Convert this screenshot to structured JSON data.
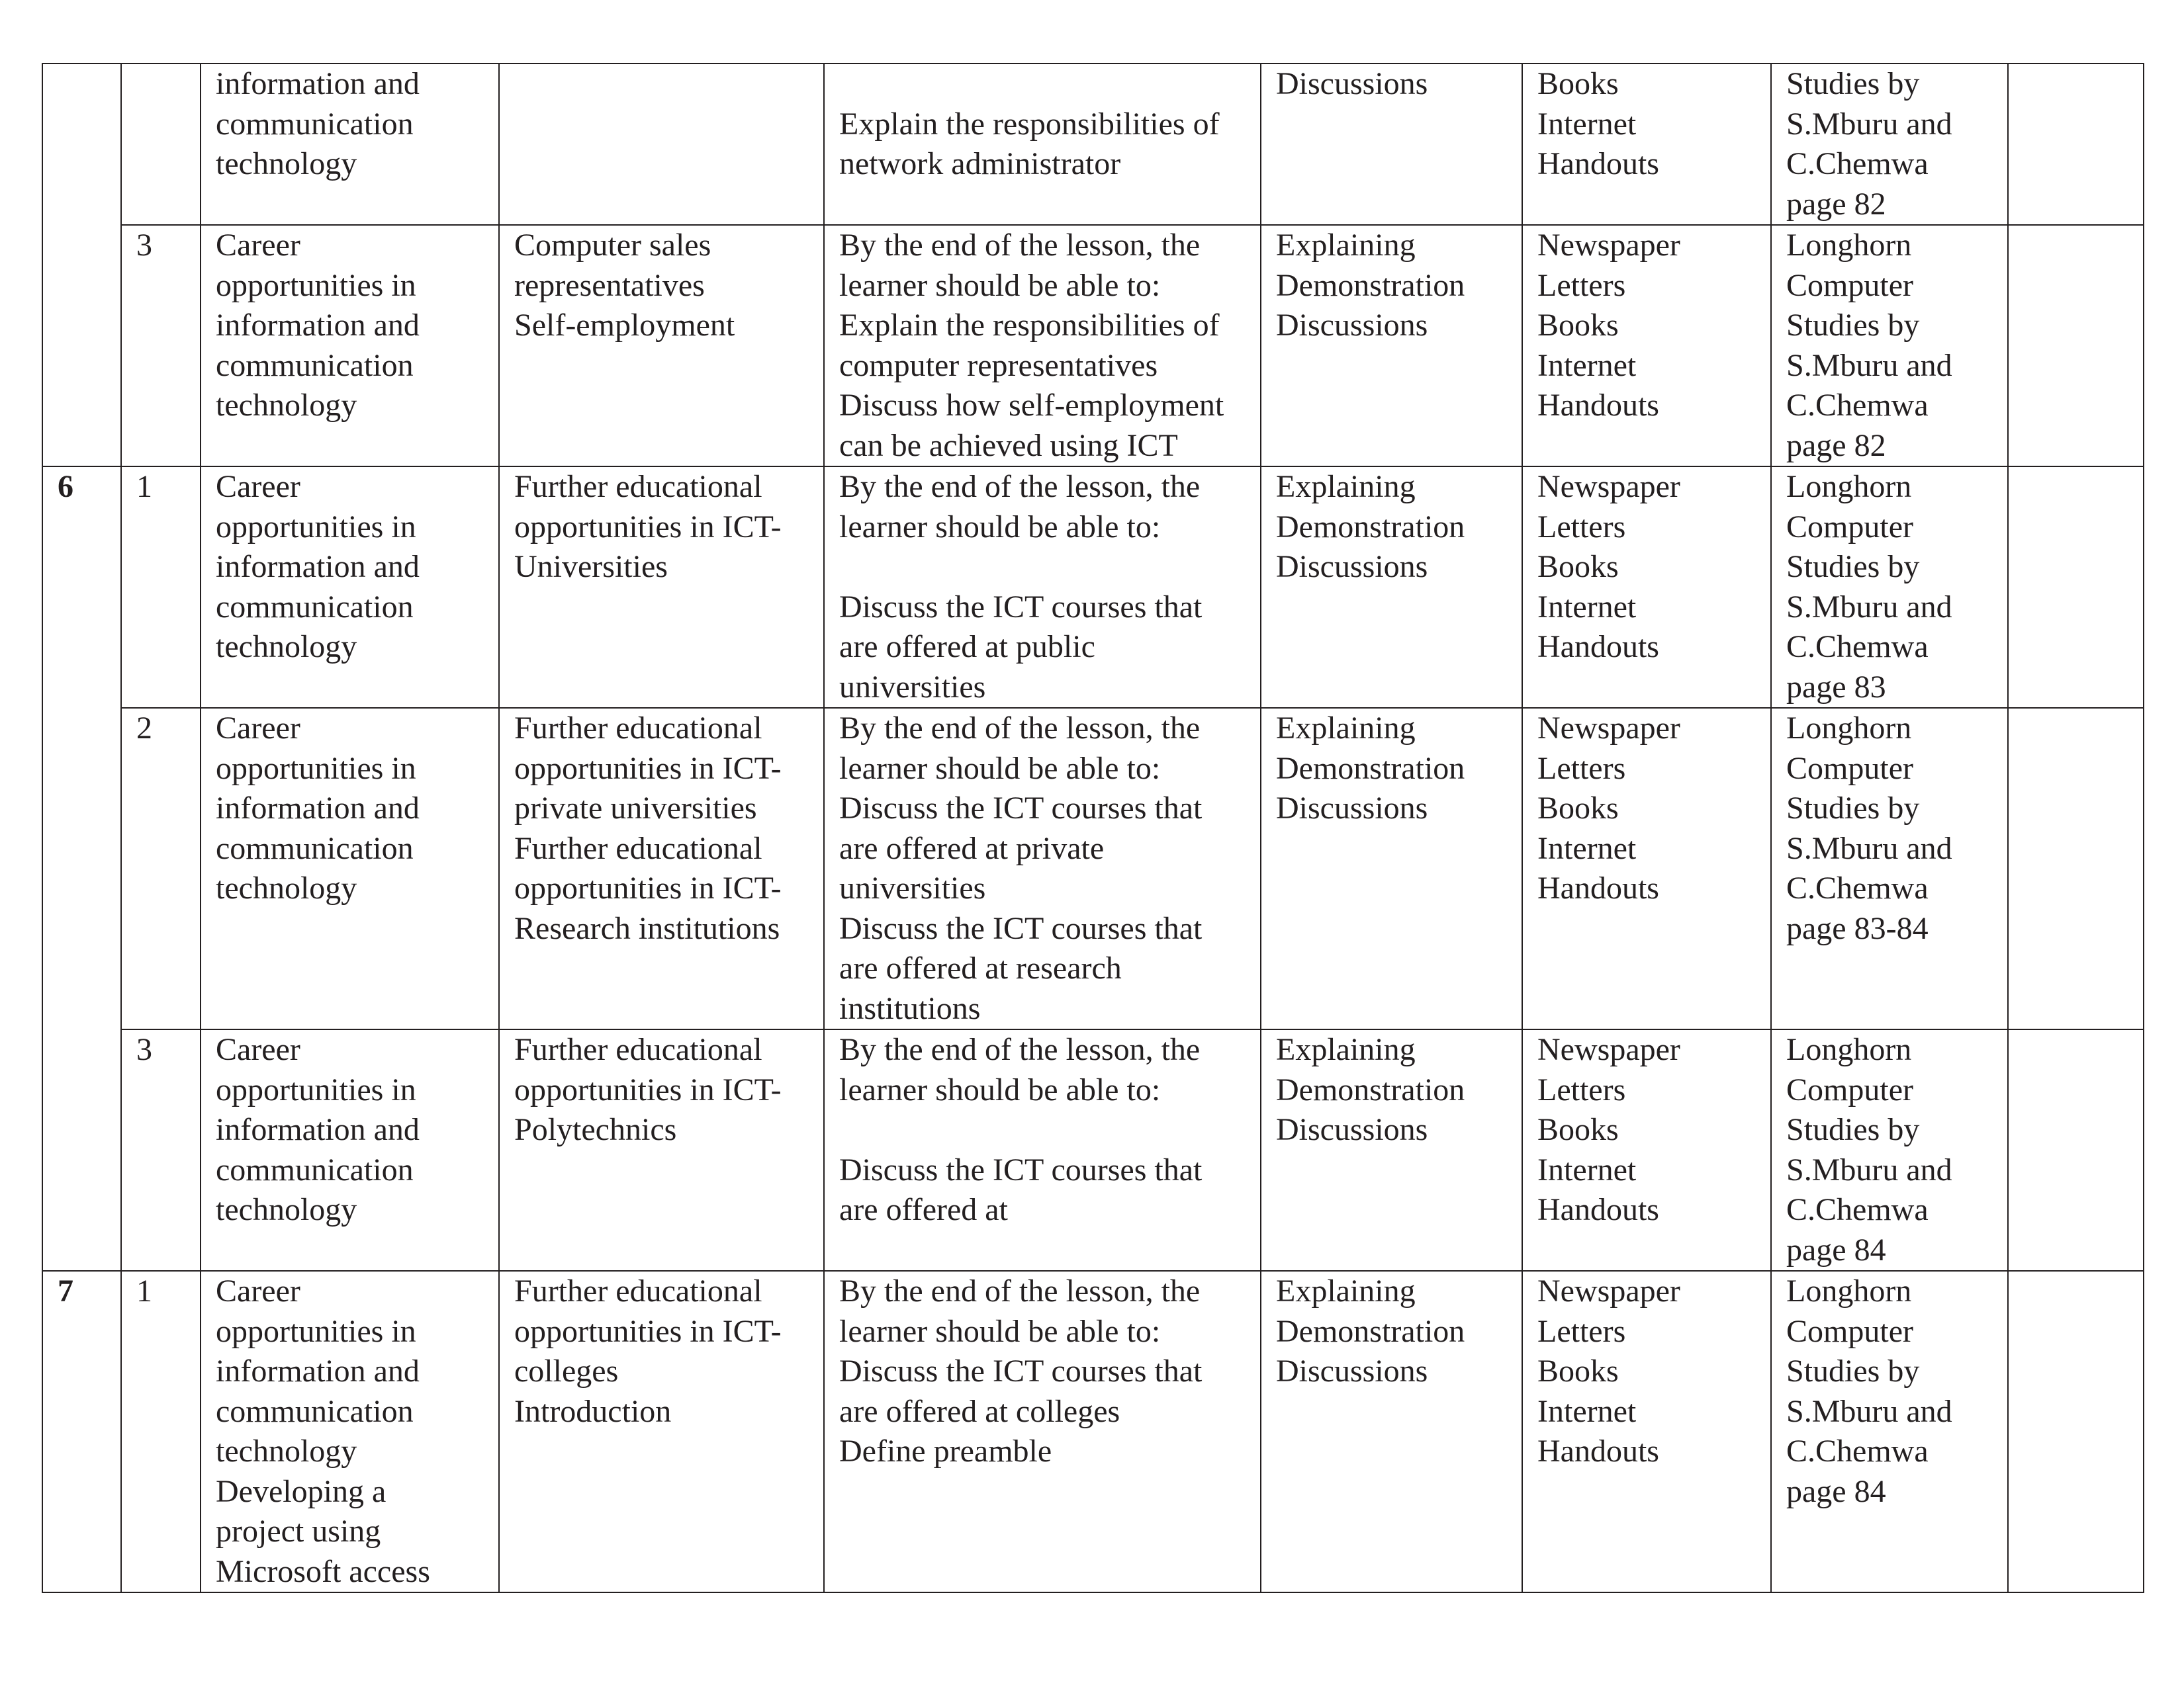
{
  "rows": [
    {
      "lesson": "",
      "topic": "information and\ncommunication\ntechnology",
      "subtopic": "",
      "objectives": "\nExplain the responsibilities of\nnetwork administrator",
      "methods": "Discussions",
      "resources": "Books\nInternet\nHandouts",
      "references": "Studies by\nS.Mburu and\nC.Chemwa\npage 82",
      "remarks": ""
    },
    {
      "lesson": "3",
      "topic": "Career\nopportunities in\ninformation and\ncommunication\ntechnology",
      "subtopic": "Computer sales\nrepresentatives\nSelf-employment",
      "objectives": "By the end of the lesson, the\nlearner should be able to:\nExplain the responsibilities of\ncomputer representatives\nDiscuss how self-employment\ncan be achieved using ICT",
      "methods": "Explaining\nDemonstration\nDiscussions",
      "resources": "Newspaper\nLetters\nBooks\nInternet\nHandouts",
      "references": "Longhorn\nComputer\nStudies by\nS.Mburu and\nC.Chemwa\npage 82",
      "remarks": ""
    },
    {
      "week": "6",
      "lesson": "1",
      "topic": "Career\nopportunities in\ninformation and\ncommunication\ntechnology",
      "subtopic": "Further educational\nopportunities in ICT-\nUniversities",
      "objectives": "By the end of the lesson, the\nlearner should be able to:\n\nDiscuss the ICT courses that\nare offered at public\nuniversities",
      "methods": "Explaining\nDemonstration\nDiscussions",
      "resources": "Newspaper\nLetters\nBooks\nInternet\nHandouts",
      "references": "Longhorn\nComputer\nStudies by\nS.Mburu and\nC.Chemwa\npage 83",
      "remarks": ""
    },
    {
      "lesson": "2",
      "topic": "Career\nopportunities in\ninformation and\ncommunication\ntechnology",
      "subtopic": "Further educational\nopportunities in ICT-\nprivate universities\nFurther educational\nopportunities in ICT-\nResearch institutions",
      "objectives": "By the end of the lesson, the\nlearner should be able to:\nDiscuss the ICT courses that\nare offered at private\nuniversities\nDiscuss the ICT courses that\nare offered at research\ninstitutions",
      "methods": "Explaining\nDemonstration\nDiscussions",
      "resources": "Newspaper\nLetters\nBooks\nInternet\nHandouts",
      "references": "Longhorn\nComputer\nStudies by\nS.Mburu and\nC.Chemwa\npage 83-84",
      "remarks": ""
    },
    {
      "lesson": "3",
      "topic": "Career\nopportunities in\ninformation and\ncommunication\ntechnology",
      "subtopic": "Further educational\nopportunities in ICT-\nPolytechnics",
      "objectives": "By the end of the lesson, the\nlearner should be able to:\n\nDiscuss the ICT courses that\nare offered at",
      "methods": "Explaining\nDemonstration\nDiscussions",
      "resources": "Newspaper\nLetters\nBooks\nInternet\nHandouts",
      "references": "Longhorn\nComputer\nStudies by\nS.Mburu and\nC.Chemwa\npage 84",
      "remarks": ""
    },
    {
      "week": "7",
      "lesson": "1",
      "topic": "Career\nopportunities in\ninformation and\ncommunication\ntechnology\nDeveloping a\nproject using\nMicrosoft access",
      "subtopic": "Further educational\nopportunities in ICT-\ncolleges\nIntroduction",
      "objectives": "By the end of the lesson, the\nlearner should be able to:\nDiscuss the ICT courses that\nare offered at colleges\nDefine preamble",
      "methods": "Explaining\nDemonstration\nDiscussions",
      "resources": "Newspaper\nLetters\nBooks\nInternet\nHandouts",
      "references": "Longhorn\nComputer\nStudies by\nS.Mburu and\nC.Chemwa\npage 84",
      "remarks": ""
    }
  ]
}
